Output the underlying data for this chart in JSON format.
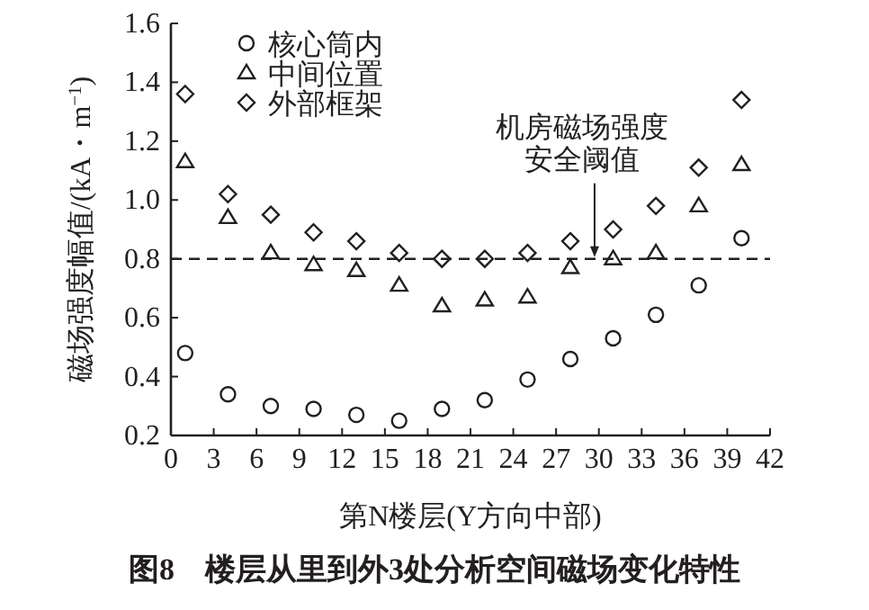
{
  "chart_data": {
    "type": "scatter",
    "title": "图8　楼层从里到外3处分析空间磁场变化特性",
    "xlabel": "第N楼层(Y方向中部)",
    "ylabel": "磁场强度幅值/(kA・m$^{−1}$)",
    "x": [
      1,
      4,
      7,
      10,
      13,
      16,
      19,
      22,
      25,
      28,
      31,
      34,
      37,
      40
    ],
    "series": [
      {
        "name": "核心筒内",
        "color": "#231f20",
        "marker": "circle",
        "values": [
          0.48,
          0.34,
          0.3,
          0.29,
          0.27,
          0.25,
          0.29,
          0.32,
          0.39,
          0.46,
          0.53,
          0.61,
          0.71,
          0.87
        ]
      },
      {
        "name": "中间位置",
        "color": "#231f20",
        "marker": "triangle",
        "values": [
          1.13,
          0.94,
          0.82,
          0.78,
          0.76,
          0.71,
          0.64,
          0.66,
          0.67,
          0.77,
          0.8,
          0.82,
          0.98,
          1.12
        ]
      },
      {
        "name": "外部框架",
        "color": "#231f20",
        "marker": "diamond",
        "values": [
          1.36,
          1.02,
          0.95,
          0.89,
          0.86,
          0.82,
          0.8,
          0.8,
          0.82,
          0.86,
          0.9,
          0.98,
          1.11,
          1.34
        ]
      }
    ],
    "xlim": [
      0,
      42
    ],
    "xticks": [
      0,
      3,
      6,
      9,
      12,
      15,
      18,
      21,
      24,
      27,
      30,
      33,
      36,
      39,
      42
    ],
    "ylim": [
      0.2,
      1.6
    ],
    "yticks": [
      {
        "value": 0.2,
        "label": "0.2"
      },
      {
        "value": 0.4,
        "label": "0.4"
      },
      {
        "value": 0.6,
        "label": "0.6"
      },
      {
        "value": 0.8,
        "label": "0.8"
      },
      {
        "value": 1.0,
        "label": "1.0"
      },
      {
        "value": 1.2,
        "label": "1.2"
      },
      {
        "value": 1.4,
        "label": "1.4"
      },
      {
        "value": 1.6,
        "label": "1.6"
      }
    ],
    "ref_lines": [
      {
        "axis": "y",
        "value": 0.8,
        "line_style": "dashed",
        "color": "#231f20"
      }
    ],
    "annotations": [
      {
        "text": "机房磁场强度安全阈值",
        "x": 29.7,
        "y": 0.8
      }
    ],
    "grid": false,
    "legend": "top left"
  }
}
